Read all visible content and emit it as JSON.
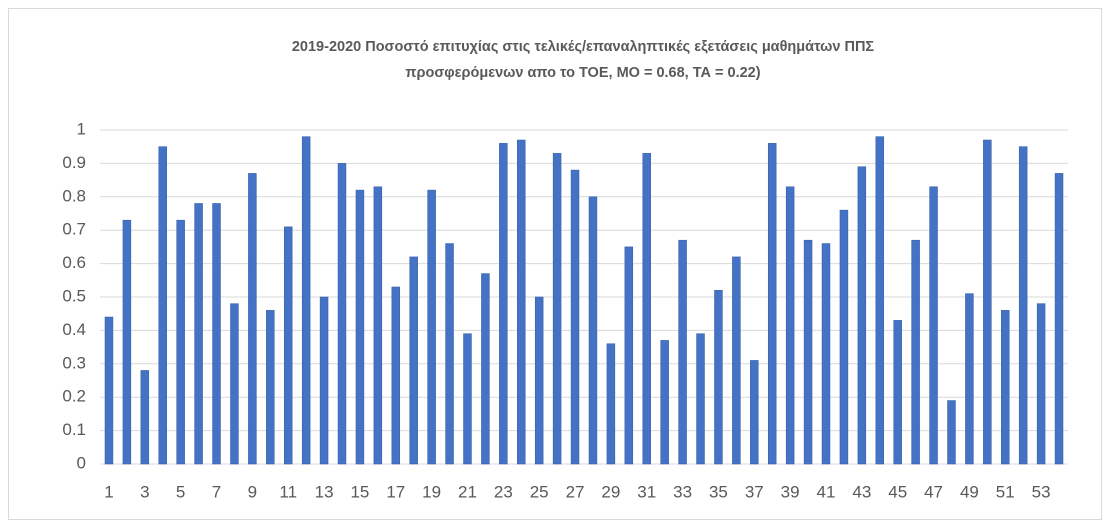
{
  "chart_data": {
    "type": "bar",
    "title": [
      "2019-2020 Ποσοστό επιτυχίας στις τελικές/επαναληπτικές εξετάσεις μαθημάτων ΠΠΣ",
      "προσφερόμενων απο το ΤΟΕ, ΜΟ = 0.68, ΤΑ = 0.22)"
    ],
    "categories": [
      1,
      null,
      3,
      null,
      5,
      null,
      7,
      null,
      9,
      null,
      11,
      null,
      13,
      null,
      15,
      null,
      17,
      null,
      19,
      null,
      21,
      null,
      23,
      null,
      25,
      null,
      27,
      null,
      29,
      null,
      31,
      null,
      33,
      null,
      35,
      null,
      37,
      null,
      39,
      null,
      41,
      null,
      43,
      null,
      45,
      null,
      47,
      null,
      49,
      null,
      51,
      null,
      53,
      null
    ],
    "values": [
      0.44,
      0.73,
      0.28,
      0.95,
      0.73,
      0.78,
      0.78,
      0.48,
      0.87,
      0.46,
      0.71,
      0.98,
      0.5,
      0.9,
      0.82,
      0.83,
      0.53,
      0.62,
      0.82,
      0.66,
      0.39,
      0.57,
      0.96,
      0.97,
      0.5,
      0.93,
      0.88,
      0.8,
      0.36,
      0.65,
      0.93,
      0.37,
      0.67,
      0.39,
      0.52,
      0.62,
      0.31,
      0.96,
      0.83,
      0.67,
      0.66,
      0.76,
      0.89,
      0.98,
      0.43,
      0.67,
      0.83,
      0.19,
      0.51,
      0.97,
      0.46,
      0.95,
      0.48,
      0.87
    ],
    "color": "#4472c4",
    "ylim": [
      0,
      1
    ],
    "yticks": [
      0,
      0.1,
      0.2,
      0.3,
      0.4,
      0.5,
      0.6,
      0.7,
      0.8,
      0.9,
      1
    ],
    "grid": true
  }
}
